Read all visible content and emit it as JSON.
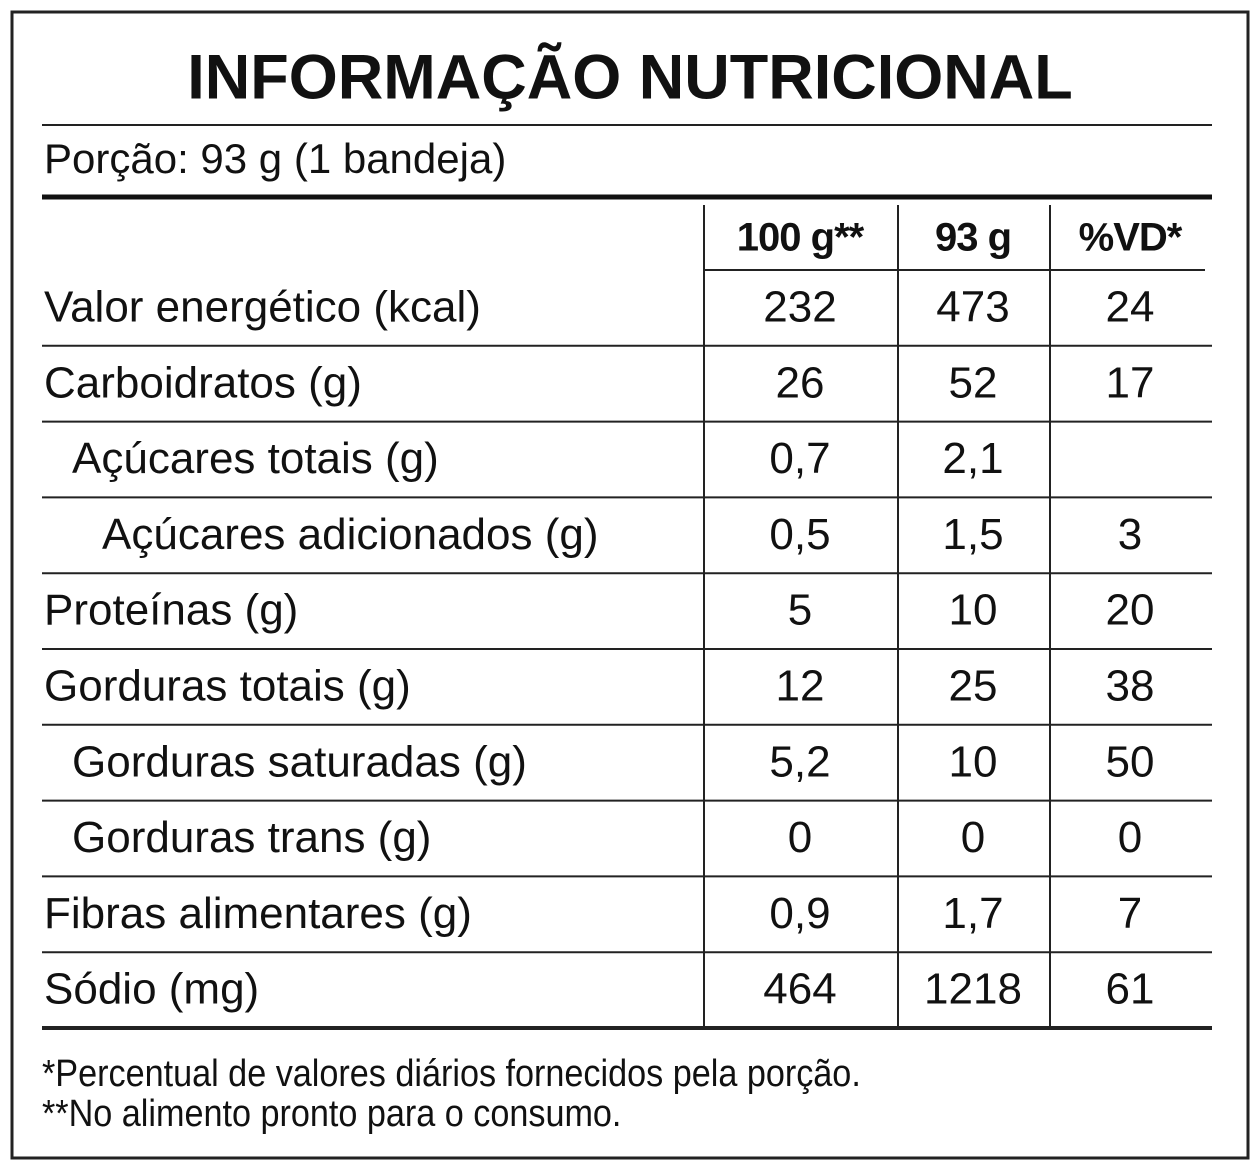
{
  "title": "INFORMAÇÃO NUTRICIONAL",
  "serving": "Porção: 93 g (1 bandeja)",
  "table": {
    "header": [
      "100 g**",
      "93 g",
      "%VD*"
    ],
    "rows": [
      {
        "label": "Valor energético (kcal)",
        "level": 0,
        "cells": [
          "232",
          "473",
          "24"
        ]
      },
      {
        "label": "Carboidratos (g)",
        "level": 0,
        "cells": [
          "26",
          "52",
          "17"
        ]
      },
      {
        "label": "Açúcares totais (g)",
        "level": 1,
        "cells": [
          "0,7",
          "2,1",
          null
        ]
      },
      {
        "label": "Açúcares adicionados (g)",
        "level": 2,
        "cells": [
          "0,5",
          "1,5",
          "3"
        ]
      },
      {
        "label": "Proteínas (g)",
        "level": 0,
        "cells": [
          "5",
          "10",
          "20"
        ]
      },
      {
        "label": "Gorduras totais (g)",
        "level": 0,
        "cells": [
          "12",
          "25",
          "38"
        ]
      },
      {
        "label": "Gorduras saturadas (g)",
        "level": 1,
        "cells": [
          "5,2",
          "10",
          "50"
        ]
      },
      {
        "label": "Gorduras trans (g)",
        "level": 1,
        "cells": [
          "0",
          "0",
          "0"
        ]
      },
      {
        "label": "Fibras alimentares (g)",
        "level": 0,
        "cells": [
          "0,9",
          "1,7",
          "7"
        ]
      },
      {
        "label": "Sódio (mg)",
        "level": 0,
        "cells": [
          "464",
          "1218",
          "61"
        ]
      }
    ]
  },
  "footnotes": [
    "*Percentual de valores diários fornecidos pela porção.",
    "**No alimento pronto para o consumo."
  ]
}
